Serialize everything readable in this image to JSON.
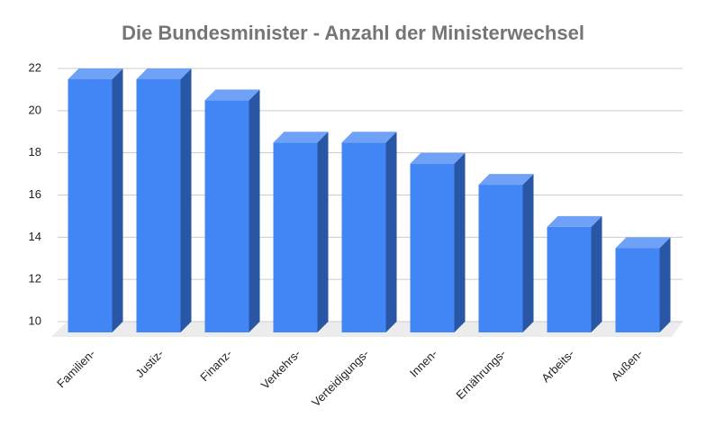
{
  "chart_data": {
    "type": "bar3d",
    "title": "Die Bundesminister - Anzahl der Ministerwechsel",
    "categories": [
      "Familien-",
      "Justiz-",
      "Finanz-",
      "Verkehrs-",
      "Verteidigungs-",
      "Innen-",
      "Ernährungs-",
      "Arbeits-",
      "Außen-"
    ],
    "values": [
      22,
      22,
      21,
      19,
      19,
      18,
      17,
      15,
      14
    ],
    "color": "#4285f4",
    "ylim": [
      10,
      22
    ],
    "yticks": [
      10,
      12,
      14,
      16,
      18,
      20,
      22
    ],
    "grid": true
  }
}
